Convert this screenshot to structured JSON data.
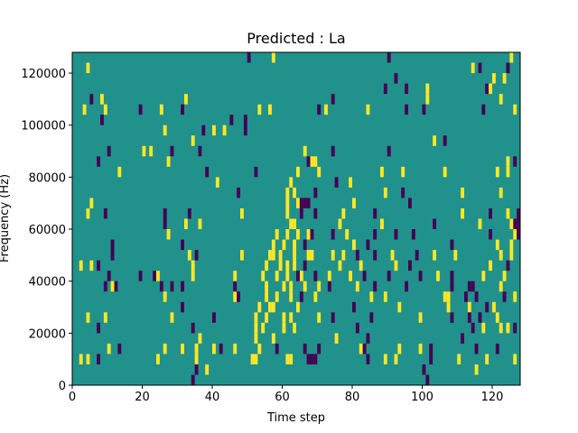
{
  "chart_data": {
    "type": "heatmap",
    "title": "Predicted : La",
    "xlabel": "Time step",
    "ylabel": "Frequency (Hz)",
    "xlim": [
      0,
      128
    ],
    "ylim": [
      0,
      128000
    ],
    "x_ticks": [
      0,
      20,
      40,
      60,
      80,
      100,
      120
    ],
    "y_ticks": [
      0,
      20000,
      40000,
      60000,
      80000,
      100000,
      120000
    ],
    "grid": false,
    "colors": {
      "background": "#21918c",
      "high": "#fde725",
      "low": "#440154"
    },
    "background_value": 0,
    "cell_height_hz": 4000,
    "cells": [
      [
        4,
        120000,
        1
      ],
      [
        5,
        108000,
        -1
      ],
      [
        3,
        104000,
        1
      ],
      [
        8,
        108000,
        1
      ],
      [
        9,
        104000,
        1
      ],
      [
        8,
        100000,
        -1
      ],
      [
        7,
        84000,
        -1
      ],
      [
        10,
        88000,
        -1
      ],
      [
        13,
        80000,
        1
      ],
      [
        5,
        68000,
        1
      ],
      [
        4,
        64000,
        1
      ],
      [
        9,
        64000,
        -1
      ],
      [
        11,
        52000,
        -1
      ],
      [
        11,
        48000,
        -1
      ],
      [
        2,
        44000,
        1
      ],
      [
        5,
        44000,
        1
      ],
      [
        7,
        44000,
        -1
      ],
      [
        10,
        40000,
        -1
      ],
      [
        11,
        36000,
        1
      ],
      [
        9,
        36000,
        -1
      ],
      [
        12,
        36000,
        -1
      ],
      [
        4,
        24000,
        1
      ],
      [
        9,
        24000,
        1
      ],
      [
        7,
        20000,
        -1
      ],
      [
        10,
        12000,
        1
      ],
      [
        13,
        12000,
        -1
      ],
      [
        2,
        8000,
        1
      ],
      [
        4,
        8000,
        1
      ],
      [
        7,
        8000,
        -1
      ],
      [
        19,
        104000,
        -1
      ],
      [
        25,
        104000,
        1
      ],
      [
        20,
        88000,
        1
      ],
      [
        22,
        88000,
        1
      ],
      [
        27,
        84000,
        1
      ],
      [
        28,
        88000,
        -1
      ],
      [
        26,
        96000,
        1
      ],
      [
        32,
        108000,
        1
      ],
      [
        31,
        104000,
        -1
      ],
      [
        34,
        92000,
        1
      ],
      [
        36,
        88000,
        -1
      ],
      [
        37,
        96000,
        -1
      ],
      [
        40,
        96000,
        1
      ],
      [
        43,
        96000,
        1
      ],
      [
        45,
        100000,
        -1
      ],
      [
        49,
        96000,
        -1
      ],
      [
        49,
        100000,
        -1
      ],
      [
        38,
        80000,
        -1
      ],
      [
        26,
        64000,
        -1
      ],
      [
        26,
        60000,
        -1
      ],
      [
        27,
        56000,
        1
      ],
      [
        33,
        64000,
        -1
      ],
      [
        32,
        60000,
        1
      ],
      [
        36,
        60000,
        1
      ],
      [
        31,
        52000,
        -1
      ],
      [
        33,
        48000,
        1
      ],
      [
        35,
        48000,
        -1
      ],
      [
        34,
        44000,
        1
      ],
      [
        34,
        40000,
        1
      ],
      [
        19,
        40000,
        -1
      ],
      [
        23,
        40000,
        -1
      ],
      [
        24,
        40000,
        1
      ],
      [
        25,
        36000,
        -1
      ],
      [
        28,
        36000,
        -1
      ],
      [
        31,
        36000,
        -1
      ],
      [
        26,
        32000,
        1
      ],
      [
        31,
        28000,
        -1
      ],
      [
        28,
        24000,
        1
      ],
      [
        34,
        20000,
        -1
      ],
      [
        40,
        24000,
        -1
      ],
      [
        26,
        12000,
        1
      ],
      [
        24,
        8000,
        1
      ],
      [
        31,
        12000,
        1
      ],
      [
        35,
        12000,
        1
      ],
      [
        35,
        8000,
        1
      ],
      [
        36,
        16000,
        1
      ],
      [
        40,
        12000,
        1
      ],
      [
        42,
        12000,
        -1
      ],
      [
        38,
        4000,
        1
      ],
      [
        35,
        4000,
        -1
      ],
      [
        34,
        0,
        -1
      ],
      [
        41,
        76000,
        1
      ],
      [
        47,
        72000,
        -1
      ],
      [
        48,
        64000,
        1
      ],
      [
        46,
        32000,
        1
      ],
      [
        47,
        32000,
        -1
      ],
      [
        46,
        36000,
        -1
      ],
      [
        46,
        40000,
        1
      ],
      [
        48,
        48000,
        1
      ],
      [
        46,
        12000,
        1
      ],
      [
        50,
        124000,
        -1
      ],
      [
        57,
        124000,
        1
      ],
      [
        53,
        104000,
        1
      ],
      [
        56,
        104000,
        1
      ],
      [
        52,
        80000,
        -1
      ],
      [
        53,
        28000,
        1
      ],
      [
        52,
        24000,
        1
      ],
      [
        52,
        20000,
        1
      ],
      [
        52,
        16000,
        1
      ],
      [
        51,
        8000,
        1
      ],
      [
        52,
        8000,
        1
      ],
      [
        53,
        12000,
        1
      ],
      [
        54,
        40000,
        1
      ],
      [
        55,
        36000,
        1
      ],
      [
        55,
        32000,
        1
      ],
      [
        56,
        28000,
        1
      ],
      [
        55,
        24000,
        1
      ],
      [
        54,
        20000,
        1
      ],
      [
        55,
        44000,
        1
      ],
      [
        56,
        48000,
        1
      ],
      [
        57,
        52000,
        1
      ],
      [
        58,
        56000,
        1
      ],
      [
        57,
        48000,
        1
      ],
      [
        58,
        40000,
        1
      ],
      [
        58,
        32000,
        1
      ],
      [
        57,
        28000,
        1
      ],
      [
        57,
        16000,
        1
      ],
      [
        58,
        12000,
        -1
      ],
      [
        59,
        44000,
        1
      ],
      [
        59,
        48000,
        1
      ],
      [
        60,
        52000,
        1
      ],
      [
        61,
        56000,
        1
      ],
      [
        60,
        36000,
        1
      ],
      [
        61,
        40000,
        1
      ],
      [
        61,
        44000,
        1
      ],
      [
        60,
        20000,
        1
      ],
      [
        61,
        8000,
        1
      ],
      [
        62,
        8000,
        1
      ],
      [
        60,
        24000,
        1
      ],
      [
        61,
        64000,
        1
      ],
      [
        61,
        68000,
        1
      ],
      [
        61,
        72000,
        1
      ],
      [
        62,
        60000,
        1
      ],
      [
        62,
        76000,
        1
      ],
      [
        63,
        52000,
        1
      ],
      [
        63,
        44000,
        1
      ],
      [
        62,
        36000,
        1
      ],
      [
        62,
        32000,
        1
      ],
      [
        63,
        60000,
        1
      ],
      [
        64,
        56000,
        1
      ],
      [
        64,
        68000,
        1
      ],
      [
        63,
        72000,
        1
      ],
      [
        64,
        80000,
        1
      ],
      [
        65,
        68000,
        -1
      ],
      [
        66,
        68000,
        -1
      ],
      [
        67,
        68000,
        -1
      ],
      [
        65,
        64000,
        -1
      ],
      [
        66,
        52000,
        -1
      ],
      [
        67,
        56000,
        1
      ],
      [
        67,
        48000,
        1
      ],
      [
        66,
        44000,
        -1
      ],
      [
        65,
        40000,
        1
      ],
      [
        66,
        36000,
        1
      ],
      [
        65,
        32000,
        -1
      ],
      [
        64,
        40000,
        -1
      ],
      [
        63,
        48000,
        1
      ],
      [
        62,
        24000,
        1
      ],
      [
        66,
        88000,
        1
      ],
      [
        67,
        84000,
        -1
      ],
      [
        68,
        84000,
        1
      ],
      [
        69,
        84000,
        1
      ],
      [
        70,
        80000,
        1
      ],
      [
        69,
        72000,
        -1
      ],
      [
        69,
        64000,
        -1
      ],
      [
        68,
        56000,
        -1
      ],
      [
        68,
        48000,
        1
      ],
      [
        69,
        40000,
        -1
      ],
      [
        70,
        36000,
        1
      ],
      [
        69,
        32000,
        1
      ],
      [
        70,
        24000,
        1
      ],
      [
        69,
        8000,
        -1
      ],
      [
        68,
        8000,
        -1
      ],
      [
        70,
        12000,
        -1
      ],
      [
        66,
        12000,
        -1
      ],
      [
        67,
        8000,
        -1
      ],
      [
        63,
        20000,
        1
      ],
      [
        64,
        28000,
        1
      ],
      [
        70,
        104000,
        -1
      ],
      [
        72,
        104000,
        1
      ],
      [
        74,
        108000,
        -1
      ],
      [
        74,
        88000,
        -1
      ],
      [
        75,
        76000,
        -1
      ],
      [
        74,
        56000,
        -1
      ],
      [
        74,
        48000,
        1
      ],
      [
        73,
        40000,
        1
      ],
      [
        73,
        36000,
        -1
      ],
      [
        74,
        24000,
        -1
      ],
      [
        75,
        16000,
        1
      ],
      [
        76,
        60000,
        1
      ],
      [
        77,
        64000,
        1
      ],
      [
        78,
        56000,
        1
      ],
      [
        77,
        48000,
        1
      ],
      [
        76,
        44000,
        1
      ],
      [
        79,
        40000,
        1
      ],
      [
        79,
        76000,
        1
      ],
      [
        80,
        68000,
        1
      ],
      [
        80,
        52000,
        1
      ],
      [
        81,
        48000,
        -1
      ],
      [
        82,
        44000,
        1
      ],
      [
        81,
        36000,
        1
      ],
      [
        80,
        28000,
        -1
      ],
      [
        81,
        20000,
        -1
      ],
      [
        82,
        12000,
        1
      ],
      [
        83,
        12000,
        -1
      ],
      [
        84,
        16000,
        -1
      ],
      [
        84,
        8000,
        -1
      ],
      [
        83,
        40000,
        -1
      ],
      [
        84,
        52000,
        -1
      ],
      [
        86,
        48000,
        -1
      ],
      [
        86,
        36000,
        -1
      ],
      [
        85,
        32000,
        1
      ],
      [
        85,
        24000,
        -1
      ],
      [
        86,
        56000,
        -1
      ],
      [
        88,
        60000,
        1
      ],
      [
        89,
        32000,
        1
      ],
      [
        90,
        40000,
        -1
      ],
      [
        91,
        48000,
        1
      ],
      [
        92,
        44000,
        1
      ],
      [
        92,
        56000,
        -1
      ],
      [
        86,
        64000,
        -1
      ],
      [
        89,
        72000,
        1
      ],
      [
        88,
        80000,
        1
      ],
      [
        90,
        88000,
        -1
      ],
      [
        84,
        104000,
        1
      ],
      [
        89,
        112000,
        -1
      ],
      [
        90,
        124000,
        -1
      ],
      [
        92,
        116000,
        -1
      ],
      [
        95,
        112000,
        -1
      ],
      [
        95,
        104000,
        -1
      ],
      [
        94,
        80000,
        1
      ],
      [
        94,
        72000,
        -1
      ],
      [
        96,
        68000,
        -1
      ],
      [
        97,
        56000,
        -1
      ],
      [
        96,
        44000,
        -1
      ],
      [
        95,
        36000,
        -1
      ],
      [
        93,
        28000,
        1
      ],
      [
        93,
        12000,
        1
      ],
      [
        92,
        8000,
        1
      ],
      [
        89,
        8000,
        1
      ],
      [
        98,
        48000,
        -1
      ],
      [
        99,
        40000,
        -1
      ],
      [
        99,
        24000,
        1
      ],
      [
        99,
        12000,
        1
      ],
      [
        100,
        4000,
        -1
      ],
      [
        101,
        0,
        -1
      ],
      [
        102,
        12000,
        -1
      ],
      [
        102,
        8000,
        -1
      ],
      [
        103,
        60000,
        -1
      ],
      [
        103,
        48000,
        1
      ],
      [
        100,
        104000,
        -1
      ],
      [
        101,
        112000,
        1
      ],
      [
        101,
        108000,
        1
      ],
      [
        103,
        92000,
        1
      ],
      [
        106,
        92000,
        -1
      ],
      [
        106,
        80000,
        1
      ],
      [
        104,
        40000,
        1
      ],
      [
        106,
        32000,
        1
      ],
      [
        107,
        32000,
        1
      ],
      [
        107,
        28000,
        1
      ],
      [
        108,
        36000,
        -1
      ],
      [
        108,
        52000,
        -1
      ],
      [
        109,
        48000,
        1
      ],
      [
        108,
        40000,
        -1
      ],
      [
        108,
        24000,
        -1
      ],
      [
        111,
        64000,
        1
      ],
      [
        111,
        72000,
        1
      ],
      [
        110,
        8000,
        1
      ],
      [
        111,
        16000,
        -1
      ],
      [
        112,
        32000,
        -1
      ],
      [
        113,
        36000,
        -1
      ],
      [
        113,
        28000,
        1
      ],
      [
        113,
        24000,
        -1
      ],
      [
        114,
        20000,
        -1
      ],
      [
        114,
        36000,
        -1
      ],
      [
        115,
        32000,
        -1
      ],
      [
        114,
        120000,
        1
      ],
      [
        116,
        120000,
        -1
      ],
      [
        117,
        104000,
        -1
      ],
      [
        118,
        112000,
        -1
      ],
      [
        119,
        64000,
        -1
      ],
      [
        119,
        56000,
        -1
      ],
      [
        120,
        28000,
        1
      ],
      [
        121,
        52000,
        1
      ],
      [
        122,
        48000,
        1
      ],
      [
        122,
        36000,
        1
      ],
      [
        121,
        24000,
        1
      ],
      [
        123,
        40000,
        1
      ],
      [
        123,
        32000,
        -1
      ],
      [
        122,
        20000,
        1
      ],
      [
        121,
        12000,
        -1
      ],
      [
        124,
        20000,
        1
      ],
      [
        124,
        44000,
        -1
      ],
      [
        125,
        48000,
        1
      ],
      [
        125,
        52000,
        1
      ],
      [
        126,
        56000,
        1
      ],
      [
        126,
        60000,
        -1
      ],
      [
        127,
        60000,
        -1
      ],
      [
        127,
        64000,
        -1
      ],
      [
        127,
        56000,
        -1
      ],
      [
        126,
        20000,
        -1
      ],
      [
        126,
        8000,
        1
      ],
      [
        124,
        120000,
        -1
      ],
      [
        123,
        116000,
        1
      ],
      [
        125,
        124000,
        1
      ],
      [
        126,
        104000,
        1
      ],
      [
        126,
        84000,
        -1
      ],
      [
        124,
        84000,
        1
      ],
      [
        124,
        80000,
        1
      ],
      [
        124,
        64000,
        1
      ],
      [
        125,
        60000,
        1
      ],
      [
        122,
        108000,
        1
      ],
      [
        121,
        80000,
        1
      ],
      [
        126,
        32000,
        1
      ],
      [
        119,
        44000,
        1
      ],
      [
        116,
        60000,
        1
      ],
      [
        117,
        40000,
        1
      ],
      [
        118,
        8000,
        1
      ],
      [
        120,
        116000,
        1
      ],
      [
        119,
        112000,
        1
      ],
      [
        122,
        72000,
        1
      ],
      [
        116,
        24000,
        -1
      ],
      [
        115,
        12000,
        -1
      ],
      [
        117,
        20000,
        1
      ],
      [
        118,
        28000,
        -1
      ],
      [
        115,
        4000,
        1
      ]
    ]
  }
}
